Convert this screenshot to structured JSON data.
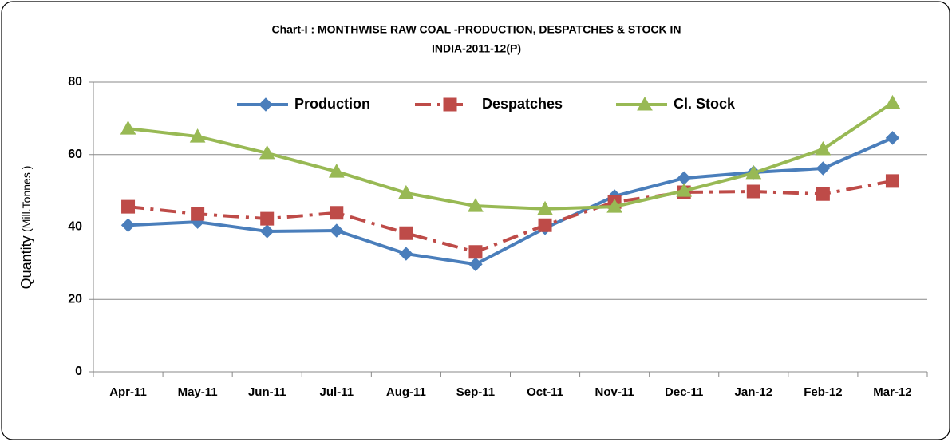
{
  "chart_data": {
    "type": "line",
    "title": [
      "Chart-I : MONTHWISE RAW COAL -PRODUCTION, DESPATCHES & STOCK IN",
      "INDIA-2011-12(P)"
    ],
    "ylabel": "Quantity",
    "ylabel_unit": "(Mill.Tonnes )",
    "categories": [
      "Apr-11",
      "May-11",
      "Jun-11",
      "Jul-11",
      "Aug-11",
      "Sep-11",
      "Oct-11",
      "Nov-11",
      "Dec-11",
      "Jan-12",
      "Feb-12",
      "Mar-12"
    ],
    "series": [
      {
        "name": "Production",
        "color": "#4a7ebb",
        "marker": "diamond",
        "dash": "solid",
        "values": [
          40.5,
          41.4,
          38.8,
          39.0,
          32.6,
          29.7,
          39.7,
          48.5,
          53.5,
          55.1,
          56.2,
          64.6
        ]
      },
      {
        "name": "Despatches",
        "color": "#be4b48",
        "marker": "square",
        "dash": "dashdot",
        "values": [
          45.6,
          43.6,
          42.3,
          43.9,
          38.3,
          33.1,
          40.5,
          46.9,
          49.6,
          49.8,
          49.1,
          52.7
        ]
      },
      {
        "name": "Cl. Stock",
        "color": "#98b954",
        "marker": "triangle",
        "dash": "solid",
        "values": [
          67.2,
          65.0,
          60.4,
          55.3,
          49.4,
          45.8,
          45.0,
          45.6,
          50.0,
          54.9,
          61.5,
          74.3
        ]
      }
    ],
    "ylim": [
      0,
      80
    ],
    "yticks": [
      0,
      20,
      40,
      60,
      80
    ],
    "grid": true,
    "legend": "top"
  }
}
